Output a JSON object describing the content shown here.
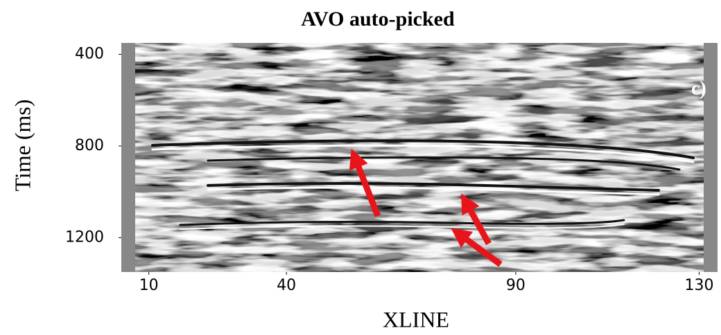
{
  "chart_data": {
    "type": "seismic-section",
    "title": "AVO auto-picked",
    "panel_label": "c)",
    "x_label": "XLINE",
    "y_label": "Time (ms)",
    "xlim": [
      4,
      134
    ],
    "xticks": [
      10,
      40,
      90,
      130
    ],
    "ylim": [
      350,
      1350
    ],
    "yticks": [
      400,
      800,
      1200
    ]
  }
}
